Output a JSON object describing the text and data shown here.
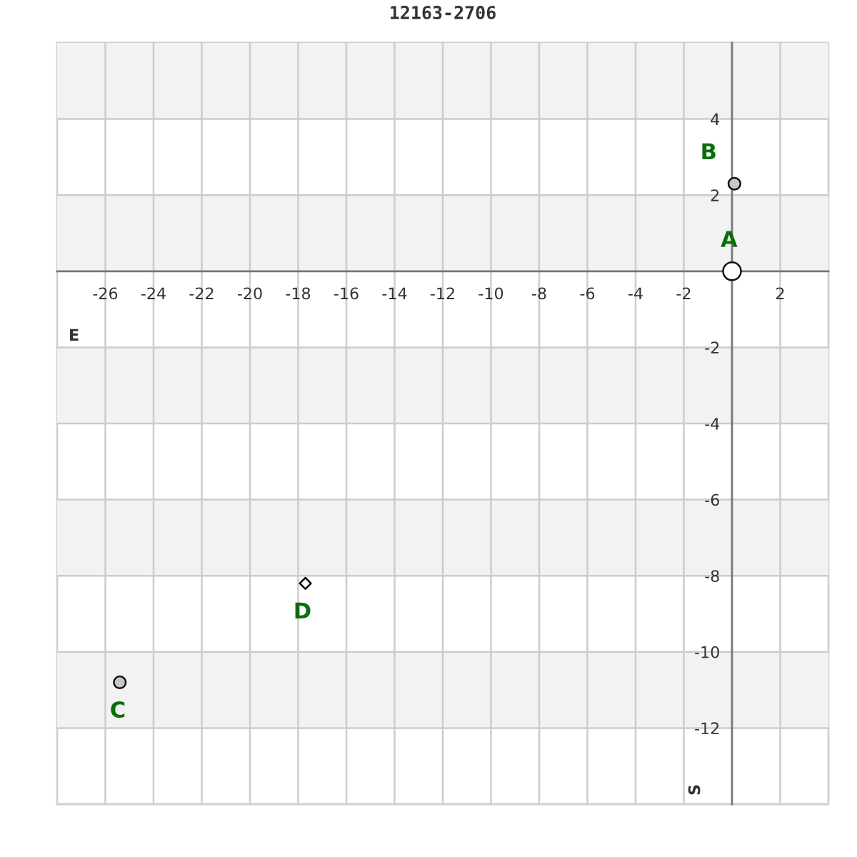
{
  "chart_data": {
    "type": "scatter",
    "title": "12163-2706",
    "xlabel": "E",
    "ylabel": "S",
    "xlim": [
      -28,
      4
    ],
    "ylim": [
      -14,
      6
    ],
    "xticks": [
      -26,
      -24,
      -22,
      -20,
      -18,
      -16,
      -14,
      -12,
      -10,
      -8,
      -6,
      -4,
      -2,
      2
    ],
    "yticks": [
      4,
      2,
      -2,
      -4,
      -6,
      -8,
      -10,
      -12
    ],
    "grid": true,
    "legend": false,
    "bands": [
      {
        "axis": "y",
        "from": 4,
        "to": 6,
        "color": "#f2f2f2"
      },
      {
        "axis": "y",
        "from": 0,
        "to": 2,
        "color": "#f2f2f2"
      },
      {
        "axis": "y",
        "from": -4,
        "to": -2,
        "color": "#f2f2f2"
      },
      {
        "axis": "y",
        "from": -8,
        "to": -6,
        "color": "#f2f2f2"
      },
      {
        "axis": "y",
        "from": -12,
        "to": -10,
        "color": "#f2f2f2"
      }
    ],
    "series": [
      {
        "name": "A",
        "color": "#ffffff",
        "marker": "circle",
        "x": [
          0
        ],
        "values": [
          0
        ]
      },
      {
        "name": "B",
        "color": "#c8c8c8",
        "marker": "circle",
        "x": [
          0.1
        ],
        "values": [
          2.3
        ]
      },
      {
        "name": "C",
        "color": "#c8c8c8",
        "marker": "circle",
        "x": [
          -25.4
        ],
        "values": [
          -10.8
        ]
      },
      {
        "name": "D",
        "color": "#ffffff",
        "marker": "diamond",
        "x": [
          -17.7
        ],
        "values": [
          -8.2
        ]
      }
    ]
  }
}
